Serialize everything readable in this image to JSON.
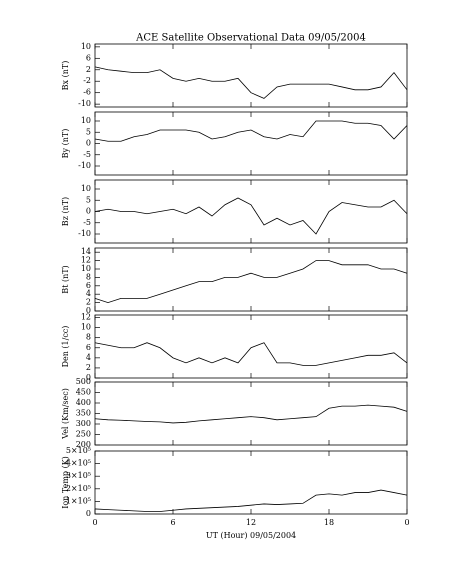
{
  "chart_data": [
    {
      "type": "line",
      "title": "ACE Satellite Observational Data   09/05/2004",
      "ylabel": "Bx (nT)",
      "x": [
        0,
        1,
        2,
        3,
        4,
        5,
        6,
        7,
        8,
        9,
        10,
        11,
        12,
        13,
        14,
        15,
        16,
        17,
        18,
        19,
        20,
        21,
        22,
        23,
        24
      ],
      "values": [
        3,
        2,
        1.5,
        1,
        1,
        2,
        -1,
        -2,
        -1,
        -2,
        -2,
        -1,
        -6,
        -8,
        -4,
        -3,
        -3,
        -3,
        -3,
        -4,
        -5,
        -5,
        -4,
        1,
        -5
      ],
      "xlim": [
        0,
        24
      ],
      "xticks": [
        0,
        6,
        12,
        18,
        {
          "value": 24,
          "label": "0"
        }
      ],
      "ylim": [
        -11,
        11
      ],
      "yticks": [
        -10,
        -6,
        -2,
        2,
        6,
        10
      ]
    },
    {
      "type": "line",
      "ylabel": "By (nT)",
      "x": [
        0,
        1,
        2,
        3,
        4,
        5,
        6,
        7,
        8,
        9,
        10,
        11,
        12,
        13,
        14,
        15,
        16,
        17,
        18,
        19,
        20,
        21,
        22,
        23,
        24
      ],
      "values": [
        2,
        1,
        1,
        3,
        4,
        6,
        6,
        6,
        5,
        2,
        3,
        5,
        6,
        3,
        2,
        4,
        3,
        10,
        10,
        10,
        9,
        9,
        8,
        2,
        8
      ],
      "xlim": [
        0,
        24
      ],
      "xticks": [
        0,
        6,
        12,
        18,
        {
          "value": 24,
          "label": "0"
        }
      ],
      "ylim": [
        -14,
        14
      ],
      "yticks": [
        -10,
        -5,
        0,
        5,
        10
      ]
    },
    {
      "type": "line",
      "ylabel": "Bz (nT)",
      "x": [
        0,
        1,
        2,
        3,
        4,
        5,
        6,
        7,
        8,
        9,
        10,
        11,
        12,
        13,
        14,
        15,
        16,
        17,
        18,
        19,
        20,
        21,
        22,
        23,
        24
      ],
      "values": [
        0,
        1,
        0,
        0,
        -1,
        0,
        1,
        -1,
        2,
        -2,
        3,
        6,
        3,
        -6,
        -3,
        -6,
        -4,
        -10,
        0,
        4,
        3,
        2,
        2,
        5,
        -1
      ],
      "xlim": [
        0,
        24
      ],
      "xticks": [
        0,
        6,
        12,
        18,
        {
          "value": 24,
          "label": "0"
        }
      ],
      "ylim": [
        -14,
        14
      ],
      "yticks": [
        -10,
        -5,
        0,
        5,
        10
      ]
    },
    {
      "type": "line",
      "ylabel": "Bt (nT)",
      "x": [
        0,
        1,
        2,
        3,
        4,
        5,
        6,
        7,
        8,
        9,
        10,
        11,
        12,
        13,
        14,
        15,
        16,
        17,
        18,
        19,
        20,
        21,
        22,
        23,
        24
      ],
      "values": [
        3,
        2,
        3,
        3,
        3,
        4,
        5,
        6,
        7,
        7,
        8,
        8,
        9,
        8,
        8,
        9,
        10,
        12,
        12,
        11,
        11,
        11,
        10,
        10,
        9
      ],
      "xlim": [
        0,
        24
      ],
      "xticks": [
        0,
        6,
        12,
        18,
        {
          "value": 24,
          "label": "0"
        }
      ],
      "ylim": [
        0,
        15
      ],
      "yticks": [
        0,
        2,
        4,
        6,
        8,
        10,
        12,
        14
      ]
    },
    {
      "type": "line",
      "ylabel": "Den (1/cc)",
      "x": [
        0,
        1,
        2,
        3,
        4,
        5,
        6,
        7,
        8,
        9,
        10,
        11,
        12,
        13,
        14,
        15,
        16,
        17,
        18,
        19,
        20,
        21,
        22,
        23,
        24
      ],
      "values": [
        7,
        6.5,
        6,
        6,
        7,
        6,
        4,
        3,
        4,
        3,
        4,
        3,
        6,
        7,
        3,
        3,
        2.5,
        2.5,
        3,
        3.5,
        4,
        4.5,
        4.5,
        5,
        3
      ],
      "xlim": [
        0,
        24
      ],
      "xticks": [
        0,
        6,
        12,
        18,
        {
          "value": 24,
          "label": "0"
        }
      ],
      "ylim": [
        0,
        12.5
      ],
      "yticks": [
        0,
        2,
        4,
        6,
        8,
        10,
        12
      ]
    },
    {
      "type": "line",
      "ylabel": "Vel (Km/sec)",
      "x": [
        0,
        1,
        2,
        3,
        4,
        5,
        6,
        7,
        8,
        9,
        10,
        11,
        12,
        13,
        14,
        15,
        16,
        17,
        18,
        19,
        20,
        21,
        22,
        23,
        24
      ],
      "values": [
        325,
        320,
        318,
        315,
        312,
        310,
        305,
        308,
        315,
        320,
        325,
        330,
        335,
        330,
        320,
        325,
        330,
        335,
        375,
        385,
        385,
        390,
        385,
        380,
        360
      ],
      "xlim": [
        0,
        24
      ],
      "xticks": [
        0,
        6,
        12,
        18,
        {
          "value": 24,
          "label": "0"
        }
      ],
      "ylim": [
        200,
        500
      ],
      "yticks": [
        200,
        250,
        300,
        350,
        400,
        450,
        500
      ]
    },
    {
      "type": "line",
      "ylabel": "Ion Temp (K)",
      "xlabel": "UT (Hour)   09/05/2004",
      "x": [
        0,
        1,
        2,
        3,
        4,
        5,
        6,
        7,
        8,
        9,
        10,
        11,
        12,
        13,
        14,
        15,
        16,
        17,
        18,
        19,
        20,
        21,
        22,
        23,
        24
      ],
      "values": [
        40000,
        35000,
        30000,
        25000,
        20000,
        20000,
        30000,
        40000,
        45000,
        50000,
        55000,
        60000,
        70000,
        80000,
        75000,
        80000,
        85000,
        150000,
        160000,
        150000,
        170000,
        170000,
        190000,
        170000,
        150000
      ],
      "xlim": [
        0,
        24
      ],
      "xticks": [
        0,
        6,
        12,
        18,
        {
          "value": 24,
          "label": "0"
        }
      ],
      "ylim": [
        0,
        500000
      ],
      "yticks": [
        0,
        {
          "value": 100000,
          "label": "1×10⁵"
        },
        {
          "value": 200000,
          "label": "2×10⁵"
        },
        {
          "value": 300000,
          "label": "3×10⁵"
        },
        {
          "value": 400000,
          "label": "4×10⁵"
        },
        {
          "value": 500000,
          "label": "5×10⁵"
        }
      ]
    }
  ]
}
